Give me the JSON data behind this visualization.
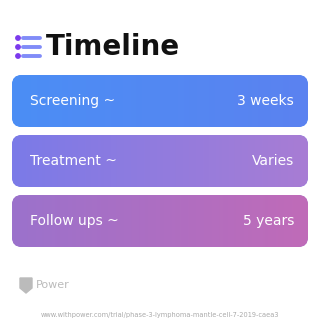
{
  "title": "Timeline",
  "title_fontsize": 20,
  "title_fontweight": "bold",
  "title_color": "#111111",
  "icon_color": "#7C3AED",
  "icon_line_color": "#818CF8",
  "background_color": "#ffffff",
  "rows": [
    {
      "label": "Screening ~",
      "value": "3 weeks",
      "color_left": "#4B8EF5",
      "color_right": "#5B82F0"
    },
    {
      "label": "Treatment ~",
      "value": "Varies",
      "color_left": "#7B7AE8",
      "color_right": "#A87DD4"
    },
    {
      "label": "Follow ups ~",
      "value": "5 years",
      "color_left": "#9B72CC",
      "color_right": "#C06BB8"
    }
  ],
  "label_fontsize": 10,
  "value_fontsize": 10,
  "footer_text": "www.withpower.com/trial/phase-3-lymphoma-mantle-cell-7-2019-caea3",
  "footer_fontsize": 4.8,
  "footer_color": "#aaaaaa",
  "power_text": "Power",
  "power_fontsize": 8,
  "power_color": "#bbbbbb"
}
